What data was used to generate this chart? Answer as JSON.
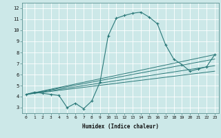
{
  "xlabel": "Humidex (Indice chaleur)",
  "xlim": [
    -0.5,
    23.5
  ],
  "ylim": [
    2.5,
    12.5
  ],
  "xticks": [
    0,
    1,
    2,
    3,
    4,
    5,
    6,
    7,
    8,
    9,
    10,
    11,
    12,
    13,
    14,
    15,
    16,
    17,
    18,
    19,
    20,
    21,
    22,
    23
  ],
  "yticks": [
    3,
    4,
    5,
    6,
    7,
    8,
    9,
    10,
    11,
    12
  ],
  "bg_color": "#cce8e8",
  "grid_color": "#ffffff",
  "line_color": "#2a7878",
  "main_line": {
    "x": [
      0,
      1,
      2,
      3,
      4,
      5,
      6,
      7,
      8,
      9,
      10,
      11,
      12,
      13,
      14,
      15,
      16,
      17,
      18,
      19,
      20,
      21,
      22,
      23
    ],
    "y": [
      4.2,
      4.4,
      4.3,
      4.2,
      4.1,
      3.0,
      3.4,
      2.9,
      3.6,
      5.3,
      9.5,
      11.1,
      11.35,
      11.55,
      11.65,
      11.2,
      10.6,
      8.7,
      7.4,
      6.9,
      6.3,
      6.5,
      6.7,
      7.8
    ]
  },
  "straight_lines": [
    {
      "x0": 0,
      "y0": 4.2,
      "x1": 23,
      "y1": 7.8
    },
    {
      "x0": 0,
      "y0": 4.2,
      "x1": 23,
      "y1": 7.4
    },
    {
      "x0": 0,
      "y0": 4.2,
      "x1": 23,
      "y1": 6.8
    },
    {
      "x0": 0,
      "y0": 4.2,
      "x1": 23,
      "y1": 6.3
    }
  ]
}
